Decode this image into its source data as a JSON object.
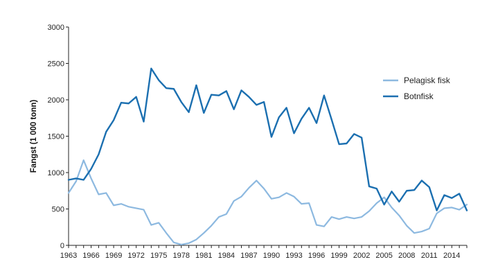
{
  "chart_data": {
    "type": "line",
    "title": "",
    "xlabel": "",
    "ylabel": "Fangst (1 000 tonn)",
    "ylim": [
      0,
      3000
    ],
    "xlim": [
      1963,
      2016
    ],
    "yticks": [
      "0",
      "500",
      "1000",
      "1500",
      "2000",
      "2500",
      "3000"
    ],
    "xticks": [
      "1963",
      "1966",
      "1969",
      "1972",
      "1975",
      "1978",
      "1981",
      "1984",
      "1987",
      "1990",
      "1993",
      "1996",
      "1999",
      "2002",
      "2005",
      "2008",
      "2011",
      "2014"
    ],
    "grid": false,
    "legend_position": "right",
    "x": [
      1963,
      1964,
      1965,
      1966,
      1967,
      1968,
      1969,
      1970,
      1971,
      1972,
      1973,
      1974,
      1975,
      1976,
      1977,
      1978,
      1979,
      1980,
      1981,
      1982,
      1983,
      1984,
      1985,
      1986,
      1987,
      1988,
      1989,
      1990,
      1991,
      1992,
      1993,
      1994,
      1995,
      1996,
      1997,
      1998,
      1999,
      2000,
      2001,
      2002,
      2003,
      2004,
      2005,
      2006,
      2007,
      2008,
      2009,
      2010,
      2011,
      2012,
      2013,
      2014,
      2015,
      2016
    ],
    "series": [
      {
        "name": "Pelagisk fisk",
        "color": "#8db9e0",
        "values": [
          720,
          880,
          1170,
          920,
          700,
          720,
          550,
          570,
          530,
          510,
          490,
          280,
          310,
          170,
          40,
          10,
          30,
          80,
          170,
          270,
          390,
          430,
          610,
          670,
          790,
          890,
          780,
          640,
          660,
          720,
          670,
          570,
          580,
          280,
          260,
          390,
          360,
          390,
          370,
          390,
          470,
          580,
          660,
          520,
          410,
          270,
          170,
          190,
          230,
          440,
          510,
          520,
          490,
          560
        ]
      },
      {
        "name": "Botnfisk",
        "color": "#1b6fb0",
        "values": [
          900,
          920,
          900,
          1050,
          1250,
          1560,
          1720,
          1960,
          1950,
          2040,
          1700,
          2430,
          2270,
          2160,
          2150,
          1970,
          1830,
          2200,
          1820,
          2070,
          2060,
          2120,
          1870,
          2130,
          2040,
          1930,
          1970,
          1490,
          1760,
          1890,
          1540,
          1740,
          1890,
          1680,
          2060,
          1730,
          1390,
          1400,
          1530,
          1480,
          810,
          780,
          560,
          740,
          600,
          750,
          760,
          890,
          800,
          480,
          690,
          650,
          710,
          480
        ]
      }
    ]
  }
}
